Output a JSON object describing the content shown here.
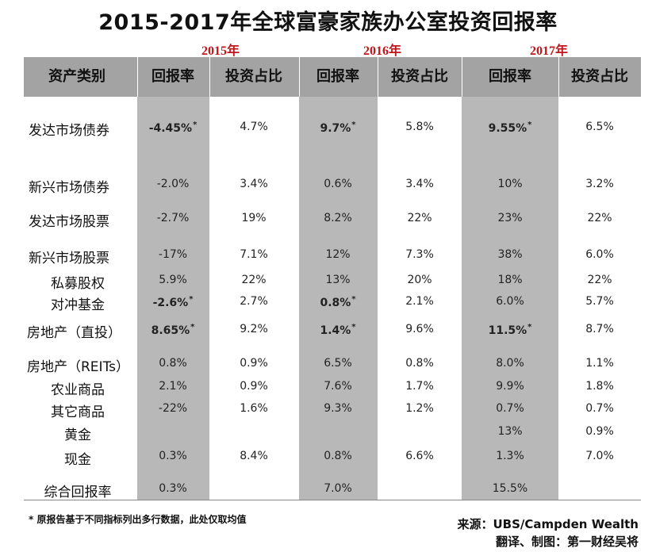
{
  "title": "2015-2017年全球富豪家族办公室投资回报率",
  "years": [
    "2015年",
    "2016年",
    "2017年"
  ],
  "headers": [
    "资产类别",
    "回报率",
    "投资占比",
    "回报率",
    "投资占比",
    "回报率",
    "投资占比"
  ],
  "rows": [
    {
      "label": "发达市场债券",
      "cells": [
        [
          "-4.45%",
          true,
          true
        ],
        [
          "4.7%",
          false,
          false
        ],
        [
          "9.7%",
          true,
          true
        ],
        [
          "5.8%",
          false,
          false
        ],
        [
          "9.55%",
          true,
          true
        ],
        [
          "6.5%",
          false,
          false
        ]
      ]
    },
    {
      "label": "新兴市场债券",
      "cells": [
        [
          "-2.0%",
          false,
          false
        ],
        [
          "3.4%",
          false,
          false
        ],
        [
          "0.6%",
          false,
          false
        ],
        [
          "3.4%",
          false,
          false
        ],
        [
          "10%",
          false,
          false
        ],
        [
          "3.2%",
          false,
          false
        ]
      ]
    },
    {
      "label": "发达市场股票",
      "cells": [
        [
          "-2.7%",
          false,
          false
        ],
        [
          "19%",
          false,
          false
        ],
        [
          "8.2%",
          false,
          false
        ],
        [
          "22%",
          false,
          false
        ],
        [
          "23%",
          false,
          false
        ],
        [
          "22%",
          false,
          false
        ]
      ]
    },
    {
      "label": "新兴市场股票",
      "cells": [
        [
          "-17%",
          false,
          false
        ],
        [
          "7.1%",
          false,
          false
        ],
        [
          "12%",
          false,
          false
        ],
        [
          "7.3%",
          false,
          false
        ],
        [
          "38%",
          false,
          false
        ],
        [
          "6.0%",
          false,
          false
        ]
      ]
    },
    {
      "label": "私募股权",
      "cells": [
        [
          "5.9%",
          false,
          false
        ],
        [
          "22%",
          false,
          false
        ],
        [
          "13%",
          false,
          false
        ],
        [
          "20%",
          false,
          false
        ],
        [
          "18%",
          false,
          false
        ],
        [
          "22%",
          false,
          false
        ]
      ]
    },
    {
      "label": "对冲基金",
      "cells": [
        [
          "-2.6%",
          true,
          true
        ],
        [
          "2.7%",
          false,
          false
        ],
        [
          "0.8%",
          true,
          true
        ],
        [
          "2.1%",
          false,
          false
        ],
        [
          "6.0%",
          false,
          false
        ],
        [
          "5.7%",
          false,
          false
        ]
      ]
    },
    {
      "label": "房地产（直投）",
      "cells": [
        [
          "8.65%",
          true,
          true
        ],
        [
          "9.2%",
          false,
          false
        ],
        [
          "1.4%",
          true,
          true
        ],
        [
          "9.6%",
          false,
          false
        ],
        [
          "11.5%",
          true,
          true
        ],
        [
          "8.7%",
          false,
          false
        ]
      ]
    },
    {
      "label": "房地产（REITs）",
      "cells": [
        [
          "0.8%",
          false,
          false
        ],
        [
          "0.9%",
          false,
          false
        ],
        [
          "6.5%",
          false,
          false
        ],
        [
          "0.8%",
          false,
          false
        ],
        [
          "8.0%",
          false,
          false
        ],
        [
          "1.1%",
          false,
          false
        ]
      ]
    },
    {
      "label": "农业商品",
      "cells": [
        [
          "2.1%",
          false,
          false
        ],
        [
          "0.9%",
          false,
          false
        ],
        [
          "7.6%",
          false,
          false
        ],
        [
          "1.7%",
          false,
          false
        ],
        [
          "9.9%",
          false,
          false
        ],
        [
          "1.8%",
          false,
          false
        ]
      ]
    },
    {
      "label": "其它商品",
      "cells": [
        [
          "-22%",
          false,
          false
        ],
        [
          "1.6%",
          false,
          false
        ],
        [
          "9.3%",
          false,
          false
        ],
        [
          "1.2%",
          false,
          false
        ],
        [
          "0.7%",
          false,
          false
        ],
        [
          "0.7%",
          false,
          false
        ]
      ]
    },
    {
      "label": "黄金",
      "cells": [
        [
          "",
          false,
          false
        ],
        [
          "",
          false,
          false
        ],
        [
          "",
          false,
          false
        ],
        [
          "",
          false,
          false
        ],
        [
          "13%",
          false,
          false
        ],
        [
          "0.9%",
          false,
          false
        ]
      ]
    },
    {
      "label": "现金",
      "cells": [
        [
          "0.3%",
          false,
          false
        ],
        [
          "8.4%",
          false,
          false
        ],
        [
          "0.8%",
          false,
          false
        ],
        [
          "6.6%",
          false,
          false
        ],
        [
          "1.3%",
          false,
          false
        ],
        [
          "7.0%",
          false,
          false
        ]
      ]
    },
    {
      "label": "综合回报率",
      "cells": [
        [
          "0.3%",
          false,
          false
        ],
        [
          "",
          false,
          false
        ],
        [
          "7.0%",
          false,
          false
        ],
        [
          "",
          false,
          false
        ],
        [
          "15.5%",
          false,
          false
        ],
        [
          "",
          false,
          false
        ]
      ]
    }
  ],
  "asterisk": "*",
  "note": "* 原报告基于不同指标列出多行数据，此处仅取均值",
  "source": "来源：UBS/Campden Wealth",
  "credit": "翻译、制图：第一财经吴将",
  "colors": {
    "header_bg": "#a3a3a3",
    "shade_bg": "#b8b8b8",
    "year_red": "#c0161b"
  }
}
